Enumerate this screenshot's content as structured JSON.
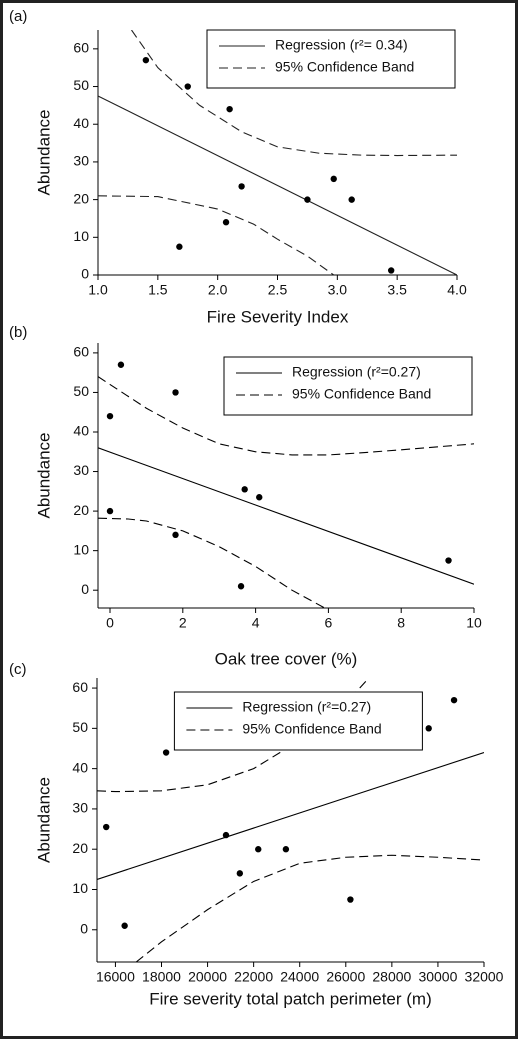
{
  "chart_data": [
    {
      "type": "scatter",
      "panel_label": "(a)",
      "x_label": "Fire Severity Index",
      "y_label": "Abundance",
      "x": [
        1.4,
        1.75,
        2.1,
        2.2,
        2.07,
        1.68,
        2.75,
        2.97,
        3.12,
        3.45
      ],
      "values": [
        57,
        50,
        44,
        23.5,
        14,
        7.5,
        20,
        25.5,
        20,
        1.2
      ],
      "color": "#000000",
      "lines": [
        {
          "name": "Regression (r²= 0.34)",
          "style": "solid",
          "color": "#222222",
          "x": [
            1.0,
            4.0
          ],
          "values": [
            47.5,
            0
          ]
        },
        {
          "name": "95% Confidence Band",
          "style": "dashed",
          "color": "#222222",
          "x": [
            1.28,
            1.5,
            1.85,
            2.2,
            2.5,
            2.85,
            3.2,
            3.5,
            4.0
          ],
          "values": [
            65,
            55,
            45,
            38,
            34,
            32.3,
            31.8,
            31.7,
            31.8
          ]
        },
        {
          "style": "dashed",
          "color": "#222222",
          "x": [
            1.0,
            1.5,
            2.0,
            2.3,
            2.5,
            2.75,
            2.97
          ],
          "values": [
            21,
            20.8,
            17.5,
            13.5,
            9.5,
            5,
            0
          ]
        }
      ],
      "xlim": [
        1.0,
        4.0
      ],
      "ylim": [
        0,
        65
      ],
      "xticks": [
        {
          "value": 1.0,
          "label": "1.0"
        },
        1.5,
        {
          "value": 2.0,
          "label": "2.0"
        },
        2.5,
        {
          "value": 3.0,
          "label": "3.0"
        },
        3.5,
        {
          "value": 4.0,
          "label": "4.0"
        }
      ],
      "yticks": [
        0,
        10,
        20,
        30,
        40,
        50,
        60
      ],
      "legend": "upper right"
    },
    {
      "type": "scatter",
      "panel_label": "(b)",
      "x_label": "Oak tree cover (%)",
      "y_label": "Abundance",
      "x": [
        0.3,
        1.8,
        0,
        0,
        1.8,
        3.7,
        4.1,
        3.6,
        9.3
      ],
      "values": [
        57,
        50,
        44,
        20,
        14,
        25.5,
        23.5,
        1,
        7.5
      ],
      "color": "#000000",
      "lines": [
        {
          "name": "Regression (r²=0.27)",
          "style": "solid",
          "color": "#000000",
          "x": [
            -0.33,
            10
          ],
          "values": [
            36,
            1.5
          ]
        },
        {
          "name": "95% Confidence Band",
          "style": "dashed",
          "color": "#000000",
          "x": [
            -0.33,
            1,
            2,
            3,
            4,
            5,
            6,
            7,
            8,
            10
          ],
          "values": [
            54,
            46,
            41,
            37,
            35,
            34.2,
            34.2,
            34.8,
            35.5,
            37
          ]
        },
        {
          "style": "dashed",
          "color": "#000000",
          "x": [
            -0.33,
            0.5,
            1,
            2,
            3,
            4,
            5,
            5.9
          ],
          "values": [
            18.2,
            18,
            17.5,
            15,
            11,
            6,
            0,
            -4.5
          ]
        }
      ],
      "xlim": [
        -0.33,
        10
      ],
      "ylim": [
        -4.5,
        62.5
      ],
      "xticks": [
        0,
        2,
        4,
        6,
        8,
        10
      ],
      "yticks": [
        0,
        10,
        20,
        30,
        40,
        50,
        60
      ],
      "legend": "upper right"
    },
    {
      "type": "scatter",
      "panel_label": "(c)",
      "x_label": "Fire severity total patch perimeter (m)",
      "y_label": "Abundance",
      "x": [
        15600,
        16400,
        18200,
        20800,
        21400,
        22200,
        23400,
        26200,
        29600,
        30700
      ],
      "values": [
        25.5,
        1,
        44,
        23.5,
        14,
        20,
        20,
        7.5,
        50,
        57
      ],
      "color": "#000000",
      "lines": [
        {
          "name": "Regression (r²=0.27)",
          "style": "solid",
          "color": "#000000",
          "x": [
            15200,
            32000
          ],
          "values": [
            12.5,
            44
          ]
        },
        {
          "name": "95% Confidence Band",
          "style": "dashed",
          "color": "#000000",
          "x": [
            15200,
            16000,
            18000,
            20000,
            22000,
            24000,
            25500,
            27000
          ],
          "values": [
            34.5,
            34.3,
            34.5,
            36,
            40,
            47,
            53,
            62.5
          ]
        },
        {
          "style": "dashed",
          "color": "#000000",
          "x": [
            16900,
            18000,
            20000,
            22000,
            24000,
            26000,
            28000,
            30000,
            32000
          ],
          "values": [
            -8,
            -3,
            5,
            12,
            16.5,
            18,
            18.5,
            18,
            17.3
          ]
        }
      ],
      "xlim": [
        15200,
        32000
      ],
      "ylim": [
        -8,
        62.5
      ],
      "xticks": [
        16000,
        18000,
        20000,
        22000,
        24000,
        26000,
        28000,
        30000,
        32000
      ],
      "yticks": [
        0,
        10,
        20,
        30,
        40,
        50,
        60
      ],
      "legend": "upper center"
    }
  ]
}
